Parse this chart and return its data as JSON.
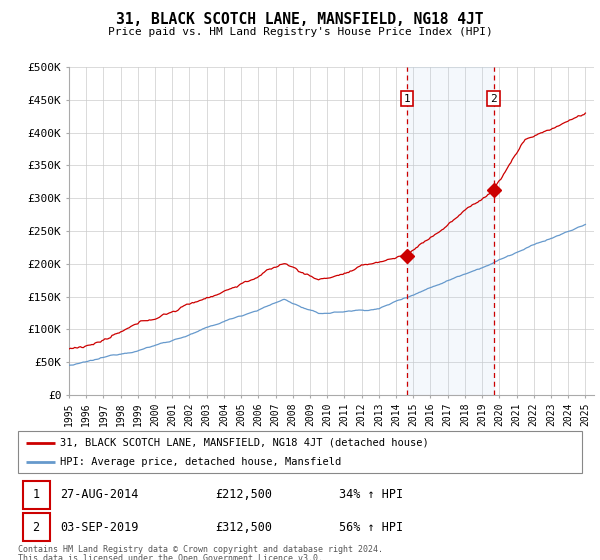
{
  "title": "31, BLACK SCOTCH LANE, MANSFIELD, NG18 4JT",
  "subtitle": "Price paid vs. HM Land Registry's House Price Index (HPI)",
  "ylim": [
    0,
    500000
  ],
  "yticks": [
    0,
    50000,
    100000,
    150000,
    200000,
    250000,
    300000,
    350000,
    400000,
    450000,
    500000
  ],
  "ytick_labels": [
    "£0",
    "£50K",
    "£100K",
    "£150K",
    "£200K",
    "£250K",
    "£300K",
    "£350K",
    "£400K",
    "£450K",
    "£500K"
  ],
  "background_color": "#ffffff",
  "red_line_color": "#cc0000",
  "blue_line_color": "#6699cc",
  "grid_color": "#cccccc",
  "marker1_date_num": 2014.65,
  "marker2_date_num": 2019.67,
  "marker1_value": 212500,
  "marker2_value": 312500,
  "legend_line1": "31, BLACK SCOTCH LANE, MANSFIELD, NG18 4JT (detached house)",
  "legend_line2": "HPI: Average price, detached house, Mansfield",
  "table_row1": [
    "1",
    "27-AUG-2014",
    "£212,500",
    "34% ↑ HPI"
  ],
  "table_row2": [
    "2",
    "03-SEP-2019",
    "£312,500",
    "56% ↑ HPI"
  ],
  "footnote1": "Contains HM Land Registry data © Crown copyright and database right 2024.",
  "footnote2": "This data is licensed under the Open Government Licence v3.0.",
  "x_start": 1995.0,
  "x_end": 2025.5,
  "xtick_years": [
    1995,
    1996,
    1997,
    1998,
    1999,
    2000,
    2001,
    2002,
    2003,
    2004,
    2005,
    2006,
    2007,
    2008,
    2009,
    2010,
    2011,
    2012,
    2013,
    2014,
    2015,
    2016,
    2017,
    2018,
    2019,
    2020,
    2021,
    2022,
    2023,
    2024,
    2025
  ]
}
